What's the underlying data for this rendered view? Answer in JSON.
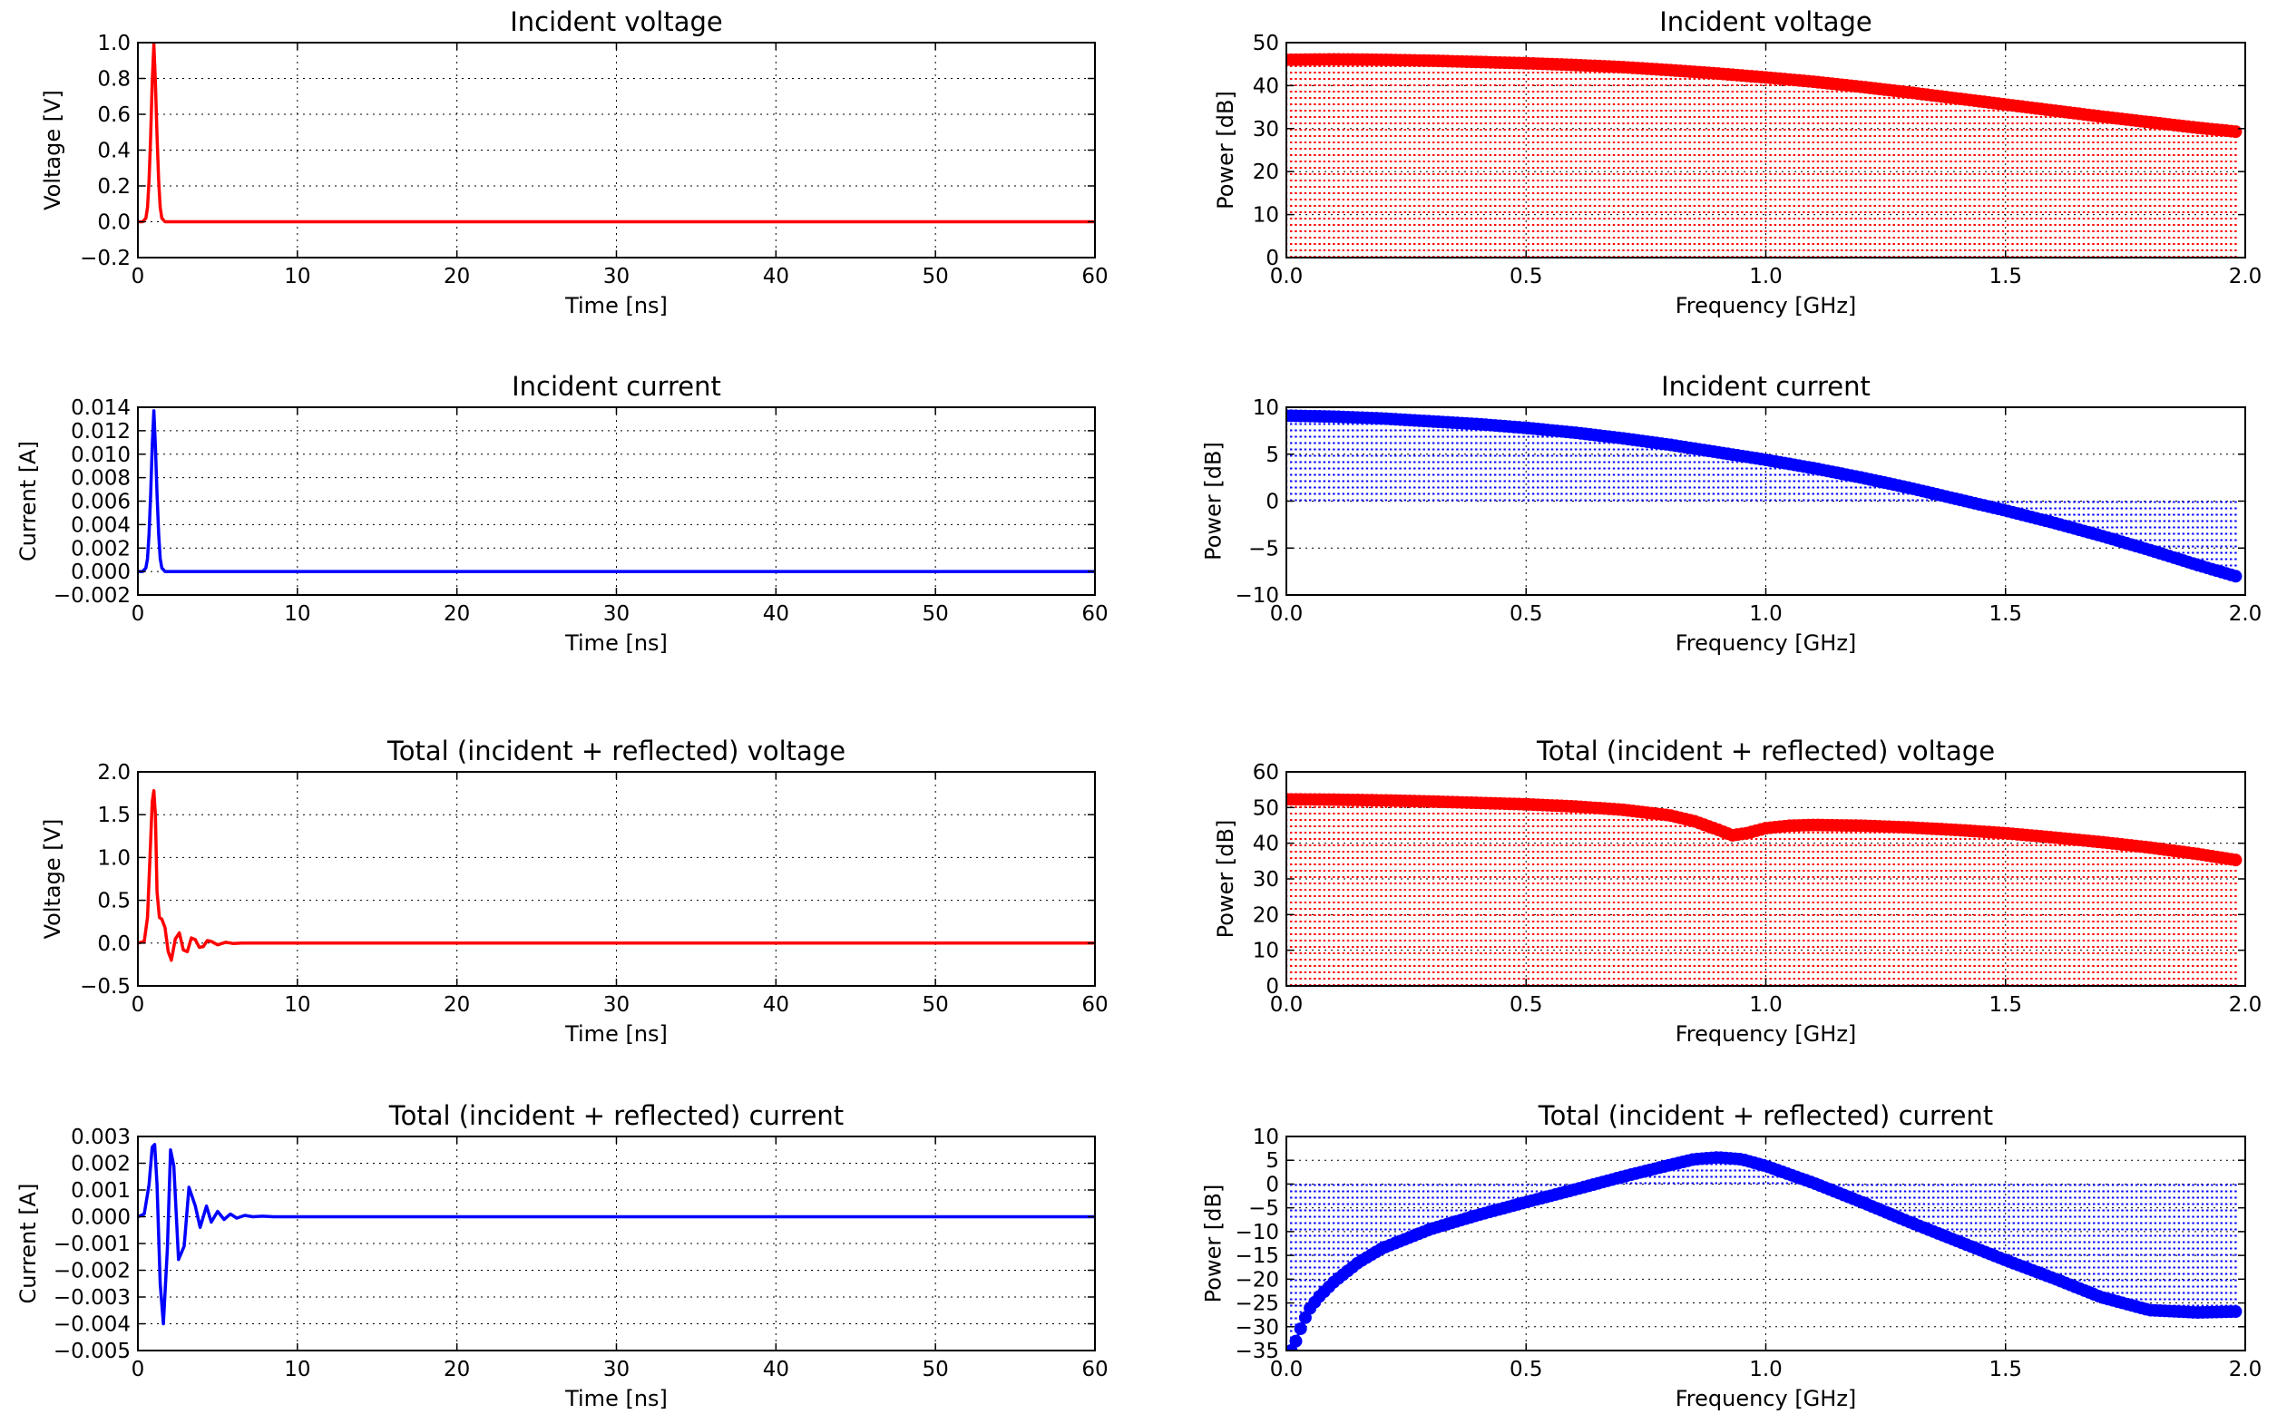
{
  "chart_data": [
    {
      "type": "line",
      "title": "Incident voltage",
      "xlabel": "Time [ns]",
      "ylabel": "Voltage [V]",
      "xlim": [
        0,
        60
      ],
      "ylim": [
        -0.2,
        1.0
      ],
      "xticks": [
        0,
        10,
        20,
        30,
        40,
        50,
        60
      ],
      "xtick_labels": [
        "0",
        "10",
        "20",
        "30",
        "40",
        "50",
        "60"
      ],
      "yticks": [
        -0.2,
        0.0,
        0.2,
        0.4,
        0.6,
        0.8,
        1.0
      ],
      "ytick_labels": [
        "−0.2",
        "0.0",
        "0.2",
        "0.4",
        "0.6",
        "0.8",
        "1.0"
      ],
      "grid": true,
      "color": "#ff0000",
      "series": [
        {
          "x": [
            0,
            0.3,
            0.5,
            0.6,
            0.7,
            0.8,
            0.9,
            1.0,
            1.1,
            1.2,
            1.3,
            1.4,
            1.5,
            1.7,
            2.0,
            60
          ],
          "y": [
            0,
            0.0,
            0.02,
            0.08,
            0.23,
            0.48,
            0.78,
            0.99,
            0.78,
            0.48,
            0.23,
            0.08,
            0.02,
            0.0,
            0,
            0
          ]
        }
      ]
    },
    {
      "type": "scatter",
      "title": "Incident voltage",
      "xlabel": "Frequency [GHz]",
      "ylabel": "Power [dB]",
      "xlim": [
        0,
        2.0
      ],
      "ylim": [
        0,
        50
      ],
      "xticks": [
        0,
        0.5,
        1.0,
        1.5,
        2.0
      ],
      "xtick_labels": [
        "0.0",
        "0.5",
        "1.0",
        "1.5",
        "2.0"
      ],
      "yticks": [
        0,
        10,
        20,
        30,
        40,
        50
      ],
      "ytick_labels": [
        "0",
        "10",
        "20",
        "30",
        "40",
        "50"
      ],
      "grid": true,
      "stem": true,
      "color": "#ff0000",
      "series": [
        {
          "x": [
            0.0,
            0.1,
            0.2,
            0.3,
            0.4,
            0.5,
            0.6,
            0.7,
            0.8,
            0.9,
            1.0,
            1.1,
            1.2,
            1.3,
            1.4,
            1.5,
            1.6,
            1.7,
            1.8,
            1.9,
            1.98
          ],
          "y": [
            46,
            46.1,
            46,
            45.8,
            45.5,
            45.2,
            44.8,
            44.3,
            43.6,
            42.8,
            41.9,
            40.9,
            39.7,
            38.4,
            37,
            35.6,
            34.2,
            32.8,
            31.5,
            30.2,
            29.3
          ]
        }
      ]
    },
    {
      "type": "line",
      "title": "Incident current",
      "xlabel": "Time [ns]",
      "ylabel": "Current [A]",
      "xlim": [
        0,
        60
      ],
      "ylim": [
        -0.002,
        0.014
      ],
      "xticks": [
        0,
        10,
        20,
        30,
        40,
        50,
        60
      ],
      "xtick_labels": [
        "0",
        "10",
        "20",
        "30",
        "40",
        "50",
        "60"
      ],
      "yticks": [
        -0.002,
        0.0,
        0.002,
        0.004,
        0.006,
        0.008,
        0.01,
        0.012,
        0.014
      ],
      "ytick_labels": [
        "−0.002",
        "0.000",
        "0.002",
        "0.004",
        "0.006",
        "0.008",
        "0.010",
        "0.012",
        "0.014"
      ],
      "grid": true,
      "color": "#0000ff",
      "series": [
        {
          "x": [
            0,
            0.3,
            0.5,
            0.6,
            0.7,
            0.8,
            0.9,
            1.0,
            1.1,
            1.2,
            1.3,
            1.4,
            1.5,
            1.7,
            2.0,
            60
          ],
          "y": [
            0,
            0.0,
            0.0003,
            0.0011,
            0.0032,
            0.0066,
            0.0107,
            0.0137,
            0.0107,
            0.0066,
            0.0032,
            0.0011,
            0.0003,
            0.0,
            0,
            0
          ]
        }
      ]
    },
    {
      "type": "scatter",
      "title": "Incident current",
      "xlabel": "Frequency [GHz]",
      "ylabel": "Power [dB]",
      "xlim": [
        0,
        2.0
      ],
      "ylim": [
        -10,
        10
      ],
      "xticks": [
        0,
        0.5,
        1.0,
        1.5,
        2.0
      ],
      "xtick_labels": [
        "0.0",
        "0.5",
        "1.0",
        "1.5",
        "2.0"
      ],
      "yticks": [
        -10,
        -5,
        0,
        5,
        10
      ],
      "ytick_labels": [
        "−10",
        "−5",
        "0",
        "5",
        "10"
      ],
      "grid": true,
      "stem": true,
      "color": "#0000ff",
      "series": [
        {
          "x": [
            0.0,
            0.1,
            0.2,
            0.3,
            0.4,
            0.5,
            0.6,
            0.7,
            0.8,
            0.9,
            1.0,
            1.1,
            1.2,
            1.3,
            1.4,
            1.5,
            1.6,
            1.7,
            1.8,
            1.9,
            1.98
          ],
          "y": [
            9.1,
            9.0,
            8.8,
            8.5,
            8.2,
            7.8,
            7.3,
            6.7,
            6.0,
            5.2,
            4.4,
            3.5,
            2.5,
            1.4,
            0.2,
            -1.0,
            -2.3,
            -3.7,
            -5.2,
            -6.8,
            -8.0
          ]
        }
      ]
    },
    {
      "type": "line",
      "title": "Total (incident + reflected) voltage",
      "xlabel": "Time [ns]",
      "ylabel": "Voltage [V]",
      "xlim": [
        0,
        60
      ],
      "ylim": [
        -0.5,
        2.0
      ],
      "xticks": [
        0,
        10,
        20,
        30,
        40,
        50,
        60
      ],
      "xtick_labels": [
        "0",
        "10",
        "20",
        "30",
        "40",
        "50",
        "60"
      ],
      "yticks": [
        -0.5,
        0.0,
        0.5,
        1.0,
        1.5,
        2.0
      ],
      "ytick_labels": [
        "−0.5",
        "0.0",
        "0.5",
        "1.0",
        "1.5",
        "2.0"
      ],
      "grid": true,
      "color": "#ff0000",
      "series": [
        {
          "x": [
            0,
            0.4,
            0.6,
            0.8,
            0.9,
            1.0,
            1.1,
            1.2,
            1.35,
            1.5,
            1.7,
            1.9,
            2.1,
            2.35,
            2.6,
            2.85,
            3.1,
            3.35,
            3.6,
            3.85,
            4.1,
            4.35,
            4.6,
            5.0,
            5.5,
            6.0,
            6.5,
            60
          ],
          "y": [
            0,
            0.02,
            0.3,
            1.2,
            1.65,
            1.78,
            1.5,
            0.6,
            0.3,
            0.28,
            0.18,
            -0.1,
            -0.2,
            0.05,
            0.12,
            -0.08,
            -0.1,
            0.06,
            0.04,
            -0.05,
            -0.04,
            0.03,
            0.02,
            -0.02,
            0.01,
            -0.005,
            0,
            0
          ]
        }
      ]
    },
    {
      "type": "scatter",
      "title": "Total (incident + reflected) voltage",
      "xlabel": "Frequency [GHz]",
      "ylabel": "Power [dB]",
      "xlim": [
        0,
        2.0
      ],
      "ylim": [
        0,
        60
      ],
      "xticks": [
        0,
        0.5,
        1.0,
        1.5,
        2.0
      ],
      "xtick_labels": [
        "0.0",
        "0.5",
        "1.0",
        "1.5",
        "2.0"
      ],
      "yticks": [
        0,
        10,
        20,
        30,
        40,
        50,
        60
      ],
      "ytick_labels": [
        "0",
        "10",
        "20",
        "30",
        "40",
        "50",
        "60"
      ],
      "grid": true,
      "stem": true,
      "color": "#ff0000",
      "series": [
        {
          "x": [
            0.0,
            0.1,
            0.2,
            0.3,
            0.4,
            0.5,
            0.6,
            0.7,
            0.8,
            0.85,
            0.9,
            0.93,
            0.96,
            1.0,
            1.05,
            1.1,
            1.2,
            1.3,
            1.4,
            1.5,
            1.6,
            1.7,
            1.8,
            1.9,
            1.98
          ],
          "y": [
            52.3,
            52.2,
            52,
            51.7,
            51.3,
            50.9,
            50.3,
            49.4,
            47.8,
            46.2,
            43.8,
            42.2,
            42.8,
            44.2,
            44.9,
            45.1,
            44.9,
            44.4,
            43.7,
            42.8,
            41.6,
            40.3,
            38.8,
            37.0,
            35.3
          ]
        }
      ]
    },
    {
      "type": "line",
      "title": "Total (incident + reflected) current",
      "xlabel": "Time [ns]",
      "ylabel": "Current [A]",
      "xlim": [
        0,
        60
      ],
      "ylim": [
        -0.005,
        0.003
      ],
      "xticks": [
        0,
        10,
        20,
        30,
        40,
        50,
        60
      ],
      "xtick_labels": [
        "0",
        "10",
        "20",
        "30",
        "40",
        "50",
        "60"
      ],
      "yticks": [
        -0.005,
        -0.004,
        -0.003,
        -0.002,
        -0.001,
        0.0,
        0.001,
        0.002,
        0.003
      ],
      "ytick_labels": [
        "−0.005",
        "−0.004",
        "−0.003",
        "−0.002",
        "−0.001",
        "0.000",
        "0.001",
        "0.002",
        "0.003"
      ],
      "grid": true,
      "color": "#0000ff",
      "series": [
        {
          "x": [
            0,
            0.4,
            0.7,
            0.9,
            1.05,
            1.2,
            1.4,
            1.6,
            1.85,
            2.05,
            2.25,
            2.55,
            2.9,
            3.2,
            3.6,
            3.9,
            4.3,
            4.6,
            5.0,
            5.4,
            5.8,
            6.2,
            6.7,
            7.2,
            7.8,
            8.5,
            60
          ],
          "y": [
            0,
            0.0001,
            0.0012,
            0.0026,
            0.0027,
            0.0012,
            -0.0025,
            -0.004,
            -0.0012,
            0.0025,
            0.0019,
            -0.0016,
            -0.0011,
            0.0011,
            0.0004,
            -0.0004,
            0.0004,
            -0.0002,
            0.0002,
            -0.0001,
            0.0001,
            -5e-05,
            5e-05,
            0,
            2e-05,
            0,
            0
          ]
        }
      ]
    },
    {
      "type": "scatter",
      "title": "Total (incident + reflected) current",
      "xlabel": "Frequency [GHz]",
      "ylabel": "Power [dB]",
      "xlim": [
        0,
        2.0
      ],
      "ylim": [
        -35,
        10
      ],
      "xticks": [
        0,
        0.5,
        1.0,
        1.5,
        2.0
      ],
      "xtick_labels": [
        "0.0",
        "0.5",
        "1.0",
        "1.5",
        "2.0"
      ],
      "yticks": [
        -35,
        -30,
        -25,
        -20,
        -15,
        -10,
        -5,
        0,
        5,
        10
      ],
      "ytick_labels": [
        "−35",
        "−30",
        "−25",
        "−20",
        "−15",
        "−10",
        "−5",
        "0",
        "5",
        "10"
      ],
      "grid": true,
      "stem": true,
      "color": "#0000ff",
      "series": [
        {
          "x": [
            0.01,
            0.02,
            0.035,
            0.05,
            0.07,
            0.1,
            0.15,
            0.2,
            0.3,
            0.4,
            0.5,
            0.6,
            0.7,
            0.8,
            0.85,
            0.9,
            0.95,
            1.0,
            1.1,
            1.2,
            1.3,
            1.4,
            1.5,
            1.6,
            1.7,
            1.8,
            1.9,
            1.98
          ],
          "y": [
            -35,
            -33,
            -29,
            -26,
            -23.5,
            -20.5,
            -16.5,
            -13.5,
            -9.5,
            -6.5,
            -3.8,
            -1.2,
            1.5,
            4.0,
            5.2,
            5.6,
            5.2,
            3.8,
            0.2,
            -3.8,
            -8.0,
            -12.0,
            -16.0,
            -19.8,
            -23.8,
            -26.5,
            -27.0,
            -26.8
          ]
        }
      ]
    }
  ]
}
